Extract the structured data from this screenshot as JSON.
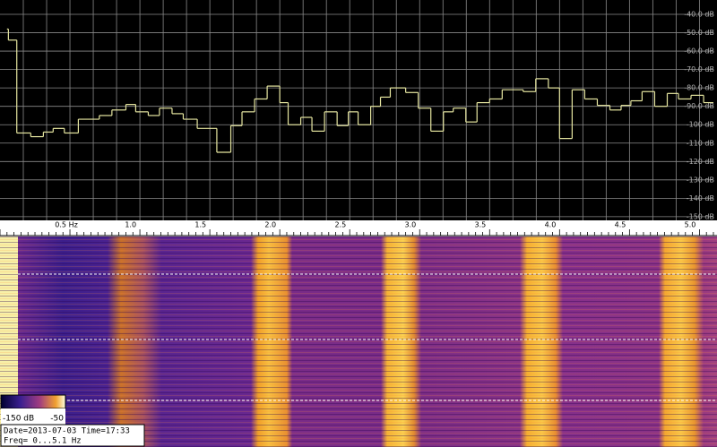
{
  "chart_data": {
    "type": "step",
    "x": [
      0.05,
      0.06,
      0.12,
      0.22,
      0.31,
      0.38,
      0.46,
      0.56,
      0.71,
      0.8,
      0.9,
      0.97,
      1.06,
      1.14,
      1.23,
      1.31,
      1.41,
      1.55,
      1.65,
      1.73,
      1.82,
      1.91,
      2.0,
      2.06,
      2.15,
      2.23,
      2.32,
      2.41,
      2.49,
      2.56,
      2.65,
      2.72,
      2.79,
      2.9,
      2.99,
      3.08,
      3.17,
      3.24,
      3.33,
      3.41,
      3.5,
      3.59,
      3.74,
      3.83,
      3.92,
      4.0,
      4.09,
      4.18,
      4.27,
      4.36,
      4.44,
      4.51,
      4.59,
      4.68,
      4.77,
      4.85,
      4.94,
      5.03
    ],
    "values": [
      -48,
      -54,
      -104.5,
      -106.5,
      -104,
      -102,
      -104.5,
      -97,
      -95,
      -92,
      -89,
      -93,
      -95,
      -91,
      -94,
      -97,
      -102,
      -115,
      -100.5,
      -93,
      -86,
      -79,
      -88,
      -100,
      -96,
      -103.5,
      -93,
      -100.5,
      -93,
      -100,
      -90,
      -85,
      -80,
      -82.5,
      -91,
      -103.5,
      -93,
      -91,
      -98.5,
      -88,
      -86,
      -81,
      -82,
      -75,
      -80,
      -107.5,
      -81,
      -86,
      -89.5,
      -92,
      -89.5,
      -87,
      -82,
      -90,
      -83,
      -86,
      -84,
      -88
    ],
    "color": "#e6e6a0",
    "xlim": [
      0,
      5.1
    ],
    "ylim": [
      -32.2,
      -152
    ],
    "xticks": [
      {
        "value": 0.5,
        "label": "0.5 Hz"
      },
      {
        "value": 1,
        "label": "1.0"
      },
      {
        "value": 1.5,
        "label": "1.5"
      },
      {
        "value": 2,
        "label": "2.0"
      },
      {
        "value": 2.5,
        "label": "2.5"
      },
      {
        "value": 3,
        "label": "3.0"
      },
      {
        "value": 3.5,
        "label": "3.5"
      },
      {
        "value": 4,
        "label": "4.0"
      },
      {
        "value": 4.5,
        "label": "4.5"
      },
      {
        "value": 5,
        "label": "5.0"
      }
    ],
    "yticks": [
      {
        "value": -40,
        "label": "-40.0 dB"
      },
      {
        "value": -50,
        "label": "-50.0 dB"
      },
      {
        "value": -60,
        "label": "-60.0 dB"
      },
      {
        "value": -70,
        "label": "-70.0 dB"
      },
      {
        "value": -80,
        "label": "-80.0 dB"
      },
      {
        "value": -90,
        "label": "-90.0 dB"
      },
      {
        "value": -100,
        "label": "-100 dB"
      },
      {
        "value": -110,
        "label": "-110 dB"
      },
      {
        "value": -120,
        "label": "-120 dB"
      },
      {
        "value": -130,
        "label": "-130 dB"
      },
      {
        "value": -140,
        "label": "-140 dB"
      },
      {
        "value": -150,
        "label": "-150 dB"
      }
    ],
    "grid": true
  },
  "waterfall": {
    "colorbar_labels": [
      "-150 dB",
      "-50"
    ],
    "info_lines": [
      "Date=2013-07-03 Time=17:33",
      "Freq= 0...5.1 Hz"
    ]
  }
}
